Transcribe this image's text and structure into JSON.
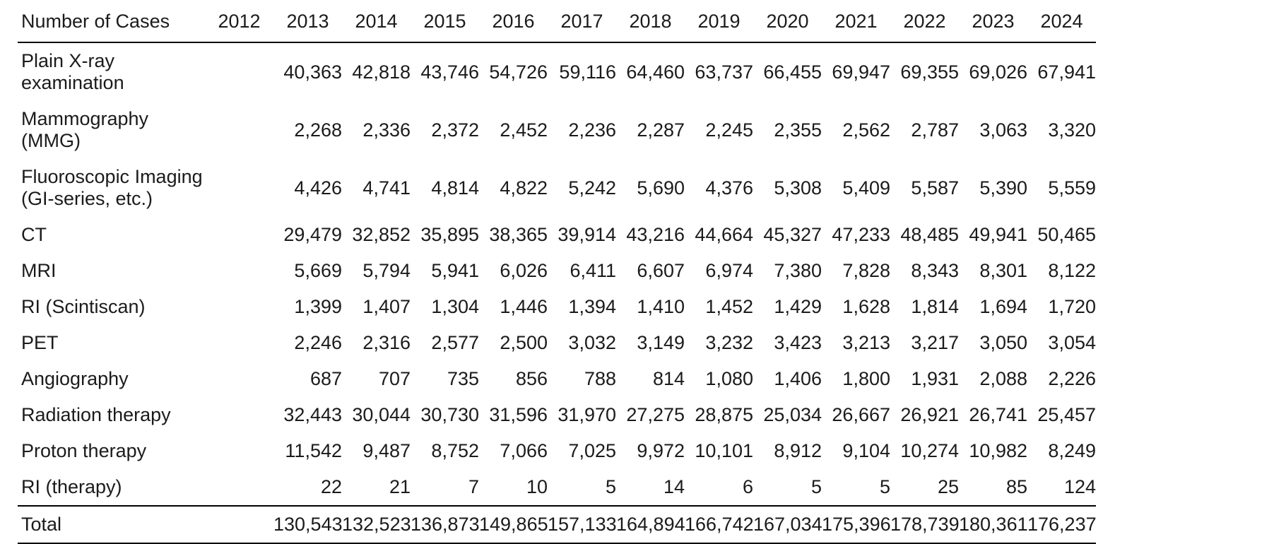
{
  "chart_data": {
    "type": "table",
    "title": "Number of Cases",
    "columns": [
      "Number of Cases",
      "2012",
      "2013",
      "2014",
      "2015",
      "2016",
      "2017",
      "2018",
      "2019",
      "2020",
      "2021",
      "2022",
      "2023",
      "2024"
    ],
    "years": [
      "2012",
      "2013",
      "2014",
      "2015",
      "2016",
      "2017",
      "2018",
      "2019",
      "2020",
      "2021",
      "2022",
      "2023",
      "2024"
    ],
    "rows": [
      {
        "label": "Plain X-ray\nexamination",
        "values": [
          "",
          "40,363",
          "42,818",
          "43,746",
          "54,726",
          "59,116",
          "64,460",
          "63,737",
          "66,455",
          "69,947",
          "69,355",
          "69,026",
          "67,941"
        ]
      },
      {
        "label": "Mammography (MMG)",
        "values": [
          "",
          "2,268",
          "2,336",
          "2,372",
          "2,452",
          "2,236",
          "2,287",
          "2,245",
          "2,355",
          "2,562",
          "2,787",
          "3,063",
          "3,320"
        ]
      },
      {
        "label": "Fluoroscopic Imaging\n(GI-series, etc.)",
        "values": [
          "",
          "4,426",
          "4,741",
          "4,814",
          "4,822",
          "5,242",
          "5,690",
          "4,376",
          "5,308",
          "5,409",
          "5,587",
          "5,390",
          "5,559"
        ]
      },
      {
        "label": "CT",
        "values": [
          "",
          "29,479",
          "32,852",
          "35,895",
          "38,365",
          "39,914",
          "43,216",
          "44,664",
          "45,327",
          "47,233",
          "48,485",
          "49,941",
          "50,465"
        ]
      },
      {
        "label": "MRI",
        "values": [
          "",
          "5,669",
          "5,794",
          "5,941",
          "6,026",
          "6,411",
          "6,607",
          "6,974",
          "7,380",
          "7,828",
          "8,343",
          "8,301",
          "8,122"
        ]
      },
      {
        "label": "RI (Scintiscan)",
        "values": [
          "",
          "1,399",
          "1,407",
          "1,304",
          "1,446",
          "1,394",
          "1,410",
          "1,452",
          "1,429",
          "1,628",
          "1,814",
          "1,694",
          "1,720"
        ]
      },
      {
        "label": "PET",
        "values": [
          "",
          "2,246",
          "2,316",
          "2,577",
          "2,500",
          "3,032",
          "3,149",
          "3,232",
          "3,423",
          "3,213",
          "3,217",
          "3,050",
          "3,054"
        ]
      },
      {
        "label": "Angiography",
        "values": [
          "",
          "687",
          "707",
          "735",
          "856",
          "788",
          "814",
          "1,080",
          "1,406",
          "1,800",
          "1,931",
          "2,088",
          "2,226"
        ]
      },
      {
        "label": "Radiation therapy",
        "values": [
          "",
          "32,443",
          "30,044",
          "30,730",
          "31,596",
          "31,970",
          "27,275",
          "28,875",
          "25,034",
          "26,667",
          "26,921",
          "26,741",
          "25,457"
        ]
      },
      {
        "label": "Proton therapy",
        "values": [
          "",
          "11,542",
          "9,487",
          "8,752",
          "7,066",
          "7,025",
          "9,972",
          "10,101",
          "8,912",
          "9,104",
          "10,274",
          "10,982",
          "8,249"
        ]
      },
      {
        "label": "RI (therapy)",
        "values": [
          "",
          "22",
          "21",
          "7",
          "10",
          "5",
          "14",
          "6",
          "5",
          "5",
          "25",
          "85",
          "124"
        ]
      }
    ],
    "total_row": {
      "label": "Total",
      "values": [
        "",
        "130,543",
        "132,523",
        "136,873",
        "149,865",
        "157,133",
        "164,894",
        "166,742",
        "167,034",
        "175,396",
        "178,739",
        "180,361",
        "176,237"
      ]
    }
  }
}
